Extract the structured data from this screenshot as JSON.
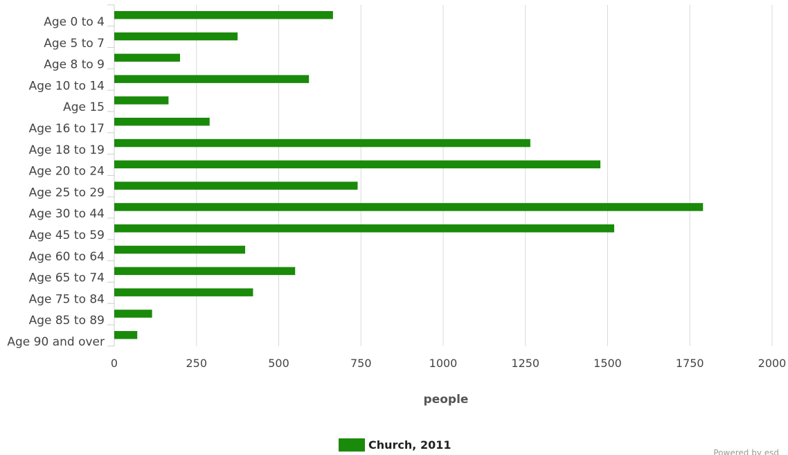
{
  "chart_data": {
    "type": "bar",
    "orientation": "horizontal",
    "categories": [
      "Age 0 to 4",
      "Age 5 to 7",
      "Age 8 to 9",
      "Age 10 to 14",
      "Age 15",
      "Age 16 to 17",
      "Age 18 to 19",
      "Age 20 to 24",
      "Age 25 to 29",
      "Age 30 to 44",
      "Age 45 to 59",
      "Age 60 to 64",
      "Age 65 to 74",
      "Age 75 to 84",
      "Age 85 to 89",
      "Age 90 and over"
    ],
    "series": [
      {
        "name": "Church, 2011",
        "color": "#1a8a0a",
        "values": [
          665,
          375,
          200,
          592,
          165,
          290,
          1265,
          1478,
          740,
          1790,
          1520,
          398,
          550,
          422,
          115,
          70
        ]
      }
    ],
    "xlabel": "people",
    "xlim": [
      0,
      2000
    ],
    "xticks": [
      0,
      250,
      500,
      750,
      1000,
      1250,
      1500,
      1750,
      2000
    ],
    "grid": "vertical",
    "legend": "bottom-center"
  },
  "credit": "Powered by esd"
}
